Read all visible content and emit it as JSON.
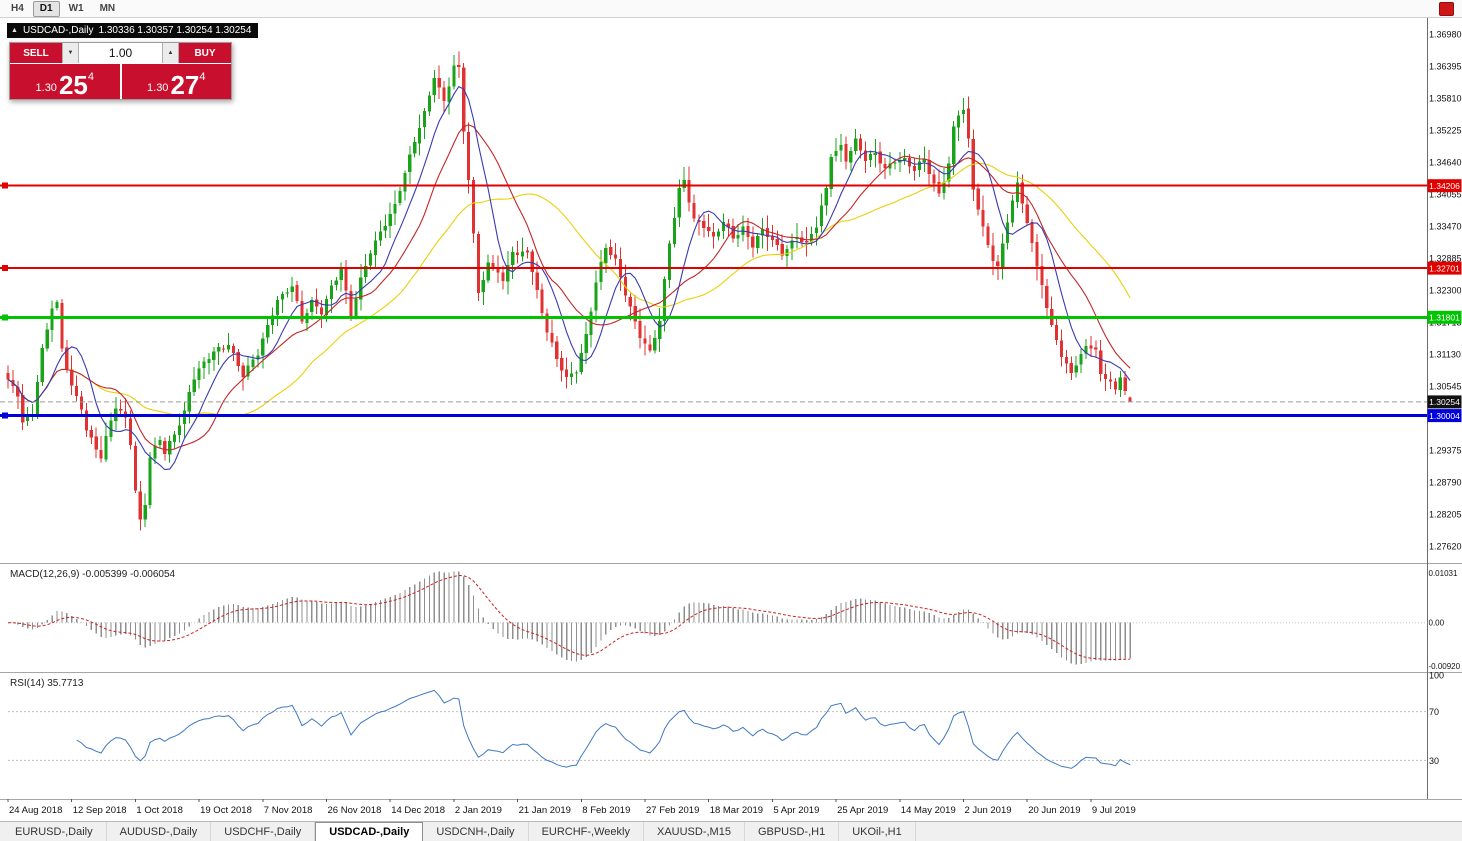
{
  "toolbar": {
    "timeframes": [
      "H4",
      "D1",
      "W1",
      "MN"
    ],
    "active_timeframe": "D1"
  },
  "icons": {
    "collapse_arrow": "▲",
    "spin_up": "▲",
    "spin_down": "▼",
    "red_square": "record-red-square"
  },
  "symbol_header": {
    "symbol": "USDCAD-,Daily",
    "ohlc": "1.30336 1.30357 1.30254 1.30254"
  },
  "trade_panel": {
    "sell_label": "SELL",
    "buy_label": "BUY",
    "volume_value": "1.00",
    "sell_price": {
      "prefix": "1.30",
      "big": "25",
      "sup": "4"
    },
    "buy_price": {
      "prefix": "1.30",
      "big": "27",
      "sup": "4"
    },
    "button_color": "#c8102e"
  },
  "tabs": {
    "items": [
      {
        "label": "EURUSD-,Daily",
        "active": false
      },
      {
        "label": "AUDUSD-,Daily",
        "active": false
      },
      {
        "label": "USDCHF-,Daily",
        "active": false
      },
      {
        "label": "USDCAD-,Daily",
        "active": true
      },
      {
        "label": "USDCNH-,Daily",
        "active": false
      },
      {
        "label": "EURCHF-,Weekly",
        "active": false
      },
      {
        "label": "XAUUSD-,M15",
        "active": false
      },
      {
        "label": "GBPUSD-,H1",
        "active": false
      },
      {
        "label": "UKOil-,H1",
        "active": false
      }
    ]
  },
  "chart_data": {
    "type": "candlestick",
    "title": "USDCAD-,Daily",
    "symbol": "USDCAD-",
    "timeframe": "Daily",
    "grid": false,
    "candle_count": 230,
    "candles_per_x_tick": 13,
    "bull_color": "#18a318",
    "bear_color": "#e03232",
    "x_tick_labels": [
      "24 Aug 2018",
      "12 Sep 2018",
      "1 Oct 2018",
      "19 Oct 2018",
      "7 Nov 2018",
      "26 Nov 2018",
      "14 Dec 2018",
      "2 Jan 2019",
      "21 Jan 2019",
      "8 Feb 2019",
      "27 Feb 2019",
      "18 Mar 2019",
      "5 Apr 2019",
      "25 Apr 2019",
      "14 May 2019",
      "2 Jun 2019",
      "20 Jun 2019",
      "9 Jul 2019"
    ],
    "y_tick_labels": [
      "1.36980",
      "1.36395",
      "1.35810",
      "1.35225",
      "1.34640",
      "1.34055",
      "1.33470",
      "1.32885",
      "1.32300",
      "1.31715",
      "1.31130",
      "1.30545",
      "1.29960",
      "1.29375",
      "1.28790",
      "1.28205",
      "1.27620"
    ],
    "y_range": [
      1.273092,
      1.372725
    ],
    "current_bar": {
      "open": 1.30336,
      "high": 1.30357,
      "low": 1.30254,
      "close": 1.30254
    },
    "close_anchors": [
      [
        0,
        1.306
      ],
      [
        2,
        1.304
      ],
      [
        3,
        1.299
      ],
      [
        5,
        1.301
      ],
      [
        7,
        1.312
      ],
      [
        9,
        1.3195
      ],
      [
        10,
        1.32
      ],
      [
        11,
        1.312
      ],
      [
        13,
        1.3055
      ],
      [
        15,
        1.302
      ],
      [
        16,
        1.2975
      ],
      [
        18,
        1.294
      ],
      [
        19,
        1.292
      ],
      [
        21,
        1.299
      ],
      [
        22,
        1.3015
      ],
      [
        24,
        1.3
      ],
      [
        25,
        1.2955
      ],
      [
        26,
        1.2865
      ],
      [
        27,
        1.281
      ],
      [
        28,
        1.284
      ],
      [
        29,
        1.292
      ],
      [
        31,
        1.2955
      ],
      [
        32,
        1.293
      ],
      [
        34,
        1.297
      ],
      [
        36,
        1.301
      ],
      [
        37,
        1.3045
      ],
      [
        38,
        1.307
      ],
      [
        42,
        1.3115
      ],
      [
        45,
        1.3135
      ],
      [
        48,
        1.3075
      ],
      [
        51,
        1.311
      ],
      [
        55,
        1.3215
      ],
      [
        58,
        1.324
      ],
      [
        60,
        1.317
      ],
      [
        62,
        1.3205
      ],
      [
        64,
        1.319
      ],
      [
        66,
        1.324
      ],
      [
        68,
        1.327
      ],
      [
        70,
        1.318
      ],
      [
        72,
        1.3245
      ],
      [
        74,
        1.33
      ],
      [
        76,
        1.334
      ],
      [
        79,
        1.3385
      ],
      [
        81,
        1.344
      ],
      [
        83,
        1.35
      ],
      [
        85,
        1.3555
      ],
      [
        87,
        1.3625
      ],
      [
        89,
        1.3575
      ],
      [
        91,
        1.3635
      ],
      [
        92,
        1.363
      ],
      [
        93,
        1.352
      ],
      [
        94,
        1.343
      ],
      [
        96,
        1.323
      ],
      [
        98,
        1.328
      ],
      [
        100,
        1.3265
      ],
      [
        101,
        1.324
      ],
      [
        103,
        1.33
      ],
      [
        104,
        1.329
      ],
      [
        106,
        1.3305
      ],
      [
        108,
        1.323
      ],
      [
        110,
        1.3155
      ],
      [
        112,
        1.31
      ],
      [
        114,
        1.3065
      ],
      [
        116,
        1.3085
      ],
      [
        118,
        1.315
      ],
      [
        120,
        1.3245
      ],
      [
        122,
        1.3305
      ],
      [
        124,
        1.328
      ],
      [
        126,
        1.3225
      ],
      [
        129,
        1.315
      ],
      [
        131,
        1.3115
      ],
      [
        133,
        1.317
      ],
      [
        135,
        1.3315
      ],
      [
        137,
        1.3415
      ],
      [
        138,
        1.3435
      ],
      [
        140,
        1.336
      ],
      [
        142,
        1.3345
      ],
      [
        144,
        1.332
      ],
      [
        146,
        1.3355
      ],
      [
        148,
        1.333
      ],
      [
        150,
        1.3345
      ],
      [
        152,
        1.331
      ],
      [
        154,
        1.3335
      ],
      [
        156,
        1.332
      ],
      [
        158,
        1.33
      ],
      [
        161,
        1.333
      ],
      [
        163,
        1.331
      ],
      [
        165,
        1.3345
      ],
      [
        167,
        1.3415
      ],
      [
        168,
        1.348
      ],
      [
        170,
        1.3495
      ],
      [
        171,
        1.347
      ],
      [
        173,
        1.35
      ],
      [
        175,
        1.3465
      ],
      [
        177,
        1.348
      ],
      [
        179,
        1.3455
      ],
      [
        181,
        1.347
      ],
      [
        183,
        1.3465
      ],
      [
        185,
        1.3445
      ],
      [
        187,
        1.347
      ],
      [
        189,
        1.3425
      ],
      [
        190,
        1.341
      ],
      [
        192,
        1.346
      ],
      [
        193,
        1.3525
      ],
      [
        194,
        1.355
      ],
      [
        195,
        1.3555
      ],
      [
        196,
        1.35
      ],
      [
        197,
        1.3415
      ],
      [
        199,
        1.3345
      ],
      [
        201,
        1.329
      ],
      [
        202,
        1.3272
      ],
      [
        204,
        1.3355
      ],
      [
        206,
        1.342
      ],
      [
        207,
        1.339
      ],
      [
        209,
        1.3315
      ],
      [
        211,
        1.3245
      ],
      [
        212,
        1.3195
      ],
      [
        214,
        1.314
      ],
      [
        215,
        1.31
      ],
      [
        217,
        1.308
      ],
      [
        218,
        1.309
      ],
      [
        220,
        1.3135
      ],
      [
        222,
        1.312
      ],
      [
        223,
        1.308
      ],
      [
        225,
        1.3055
      ],
      [
        226,
        1.3045
      ],
      [
        227,
        1.307
      ],
      [
        228,
        1.3045
      ],
      [
        229,
        1.3034
      ]
    ],
    "moving_averages": [
      {
        "name": "ma-fast",
        "period": 8,
        "color": "#3a3ab4"
      },
      {
        "name": "ma-medium",
        "period": 16,
        "color": "#c22727"
      },
      {
        "name": "ma-slow",
        "period": 34,
        "color": "#e9d10a"
      }
    ],
    "hlines": [
      {
        "value": 1.34206,
        "label": "1.34206",
        "color": "#e00000",
        "width": 2
      },
      {
        "value": 1.32701,
        "label": "1.32701",
        "color": "#e00000",
        "width": 2
      },
      {
        "value": 1.31801,
        "label": "1.31801",
        "color": "#00c400",
        "width": 3
      },
      {
        "value": 1.30004,
        "label": "1.30004",
        "color": "#0000dd",
        "width": 3
      }
    ],
    "current_price": {
      "value": 1.30254,
      "label": "1.30254",
      "line_color": "#9a9a9a",
      "badge_bg": "#111111"
    },
    "indicators": {
      "macd": {
        "label": "MACD(12,26,9)",
        "value_text": "-0.005399 -0.006054",
        "fast_period": 12,
        "slow_period": 26,
        "signal_period": 9,
        "axis_labels": [
          "0.01031",
          "0.00",
          "-0.00920"
        ],
        "bar_color": "#8f8f8f",
        "signal_color": "#cc2222"
      },
      "rsi": {
        "label": "RSI(14)",
        "value_text": "35.7713",
        "period": 14,
        "levels": [
          70,
          30
        ],
        "axis_labels": [
          "100",
          "70",
          "30"
        ],
        "line_color": "#4079c0"
      }
    }
  }
}
